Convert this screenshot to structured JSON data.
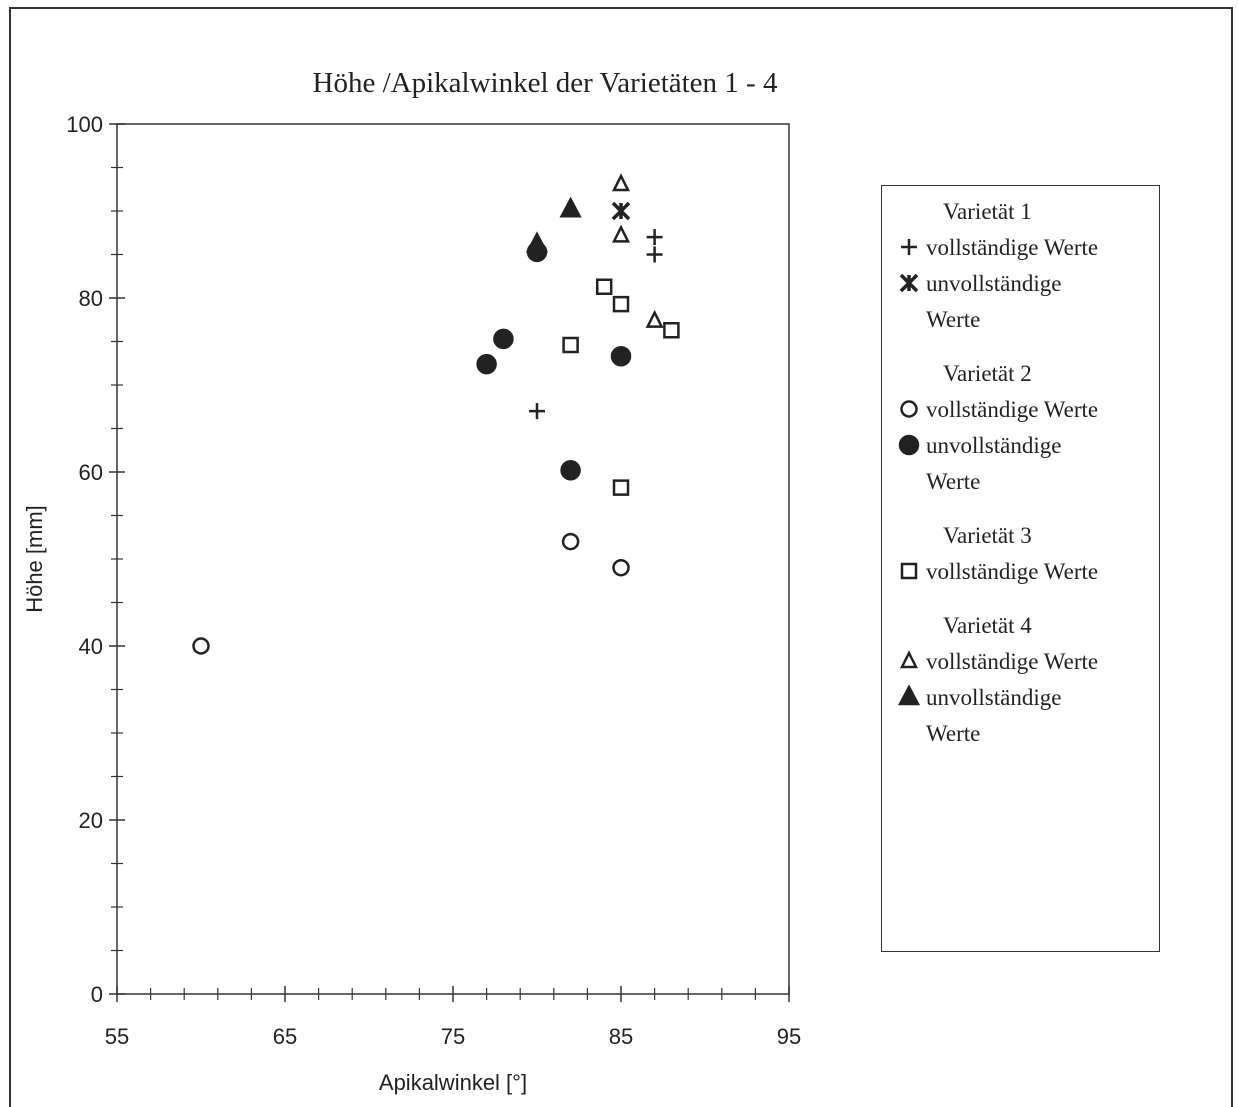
{
  "chart_data": {
    "type": "scatter",
    "title": "Höhe /Apikalwinkel der Varietäten 1 - 4",
    "xlabel": "Apikalwinkel [°]",
    "ylabel": "Höhe [mm]",
    "xlim": [
      55,
      95
    ],
    "xticks": [
      55,
      65,
      75,
      85,
      95
    ],
    "xminor_ticks": [
      57,
      59,
      61,
      63,
      67,
      69,
      71,
      73,
      77,
      79,
      81,
      83,
      87,
      89,
      91,
      93
    ],
    "ylim": [
      0,
      100
    ],
    "yticks": [
      0,
      20,
      40,
      60,
      80,
      100
    ],
    "yminor_ticks": [
      5,
      10,
      15,
      25,
      30,
      35,
      45,
      50,
      55,
      65,
      70,
      75,
      85,
      90,
      95
    ],
    "color": "#222222",
    "groups": [
      {
        "name": "Varietät 1",
        "series": [
          {
            "name": "vollständige Werte",
            "marker": "plus",
            "x": [
              80,
              87,
              87
            ],
            "y": [
              67,
              87,
              85
            ]
          },
          {
            "name": "unvollständige Werte",
            "marker": "asterisk",
            "x": [
              85
            ],
            "y": [
              90
            ]
          }
        ]
      },
      {
        "name": "Varietät 2",
        "series": [
          {
            "name": "vollständige Werte",
            "marker": "circle-open",
            "x": [
              60,
              82,
              85
            ],
            "y": [
              40,
              52,
              49
            ]
          },
          {
            "name": "unvollständige Werte",
            "marker": "circle-filled",
            "x": [
              80,
              78,
              77,
              85,
              82
            ],
            "y": [
              85.3,
              75.3,
              72.4,
              73.3,
              60.2
            ]
          }
        ]
      },
      {
        "name": "Varietät 3",
        "series": [
          {
            "name": "vollständige Werte",
            "marker": "square-open",
            "x": [
              84,
              85,
              82,
              88,
              85
            ],
            "y": [
              81.3,
              79.3,
              74.6,
              76.3,
              58.2
            ]
          }
        ]
      },
      {
        "name": "Varietät 4",
        "series": [
          {
            "name": "vollständige Werte",
            "marker": "triangle-open",
            "x": [
              85,
              85,
              87
            ],
            "y": [
              93.1,
              87.2,
              77.4
            ]
          },
          {
            "name": "unvollständige Werte",
            "marker": "triangle-filled",
            "x": [
              82,
              80
            ],
            "y": [
              90.2,
              86.2
            ]
          }
        ]
      }
    ]
  }
}
